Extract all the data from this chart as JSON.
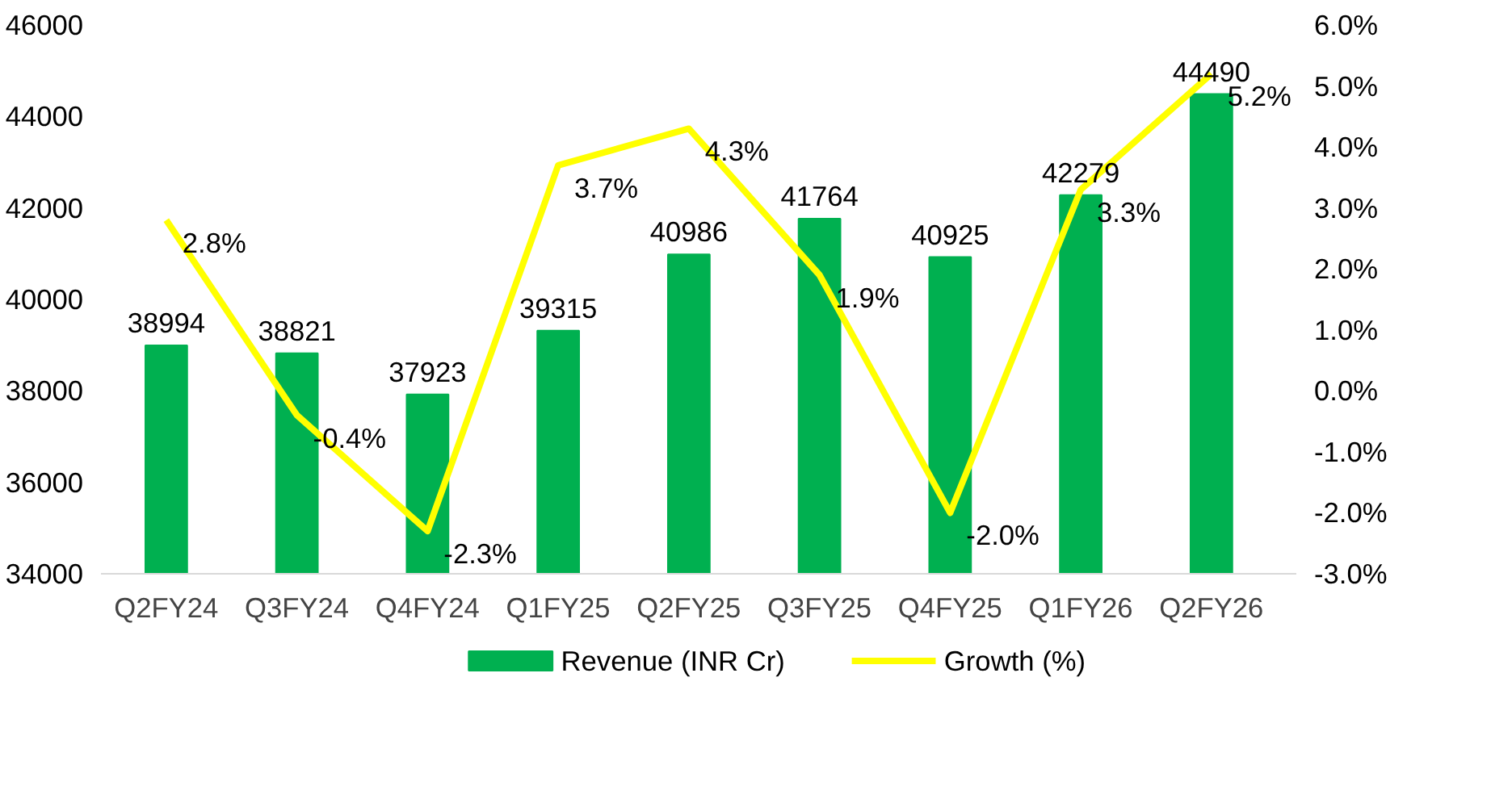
{
  "chart_data": {
    "type": "bar",
    "categories": [
      "Q2FY24",
      "Q3FY24",
      "Q4FY24",
      "Q1FY25",
      "Q2FY25",
      "Q3FY25",
      "Q4FY25",
      "Q1FY26",
      "Q2FY26"
    ],
    "series": [
      {
        "name": "Revenue (INR Cr)",
        "color": "#00b050",
        "values": [
          38994,
          38821,
          37923,
          39315,
          40986,
          41764,
          40925,
          42279,
          44490
        ],
        "value_labels": [
          "38994",
          "38821",
          "37923",
          "39315",
          "40986",
          "41764",
          "40925",
          "42279",
          "44490"
        ]
      },
      {
        "name": "Growth (%)",
        "type": "line",
        "axis": "y2",
        "color": "#ffff00",
        "values": [
          2.8,
          -0.4,
          -2.3,
          3.7,
          4.3,
          1.9,
          -2.0,
          3.3,
          5.2
        ],
        "value_labels": [
          "2.8%",
          "-0.4%",
          "-2.3%",
          "3.7%",
          "4.3%",
          "1.9%",
          "-2.0%",
          "3.3%",
          "5.2%"
        ]
      }
    ],
    "ylim": [
      34000,
      46000
    ],
    "yticks": [
      34000,
      36000,
      38000,
      40000,
      42000,
      44000,
      46000
    ],
    "y2lim": [
      -3,
      6
    ],
    "y2ticks": [
      {
        "value": -3,
        "label": "-3.0%"
      },
      {
        "value": -2,
        "label": "-2.0%"
      },
      {
        "value": -1,
        "label": "-1.0%"
      },
      {
        "value": 0,
        "label": "0.0%"
      },
      {
        "value": 1,
        "label": "1.0%"
      },
      {
        "value": 2,
        "label": "2.0%"
      },
      {
        "value": 3,
        "label": "3.0%"
      },
      {
        "value": 4,
        "label": "4.0%"
      },
      {
        "value": 5,
        "label": "5.0%"
      },
      {
        "value": 6,
        "label": "6.0%"
      }
    ],
    "grid": false,
    "legend": "bottom",
    "line_style": "solid",
    "marker": "none"
  }
}
